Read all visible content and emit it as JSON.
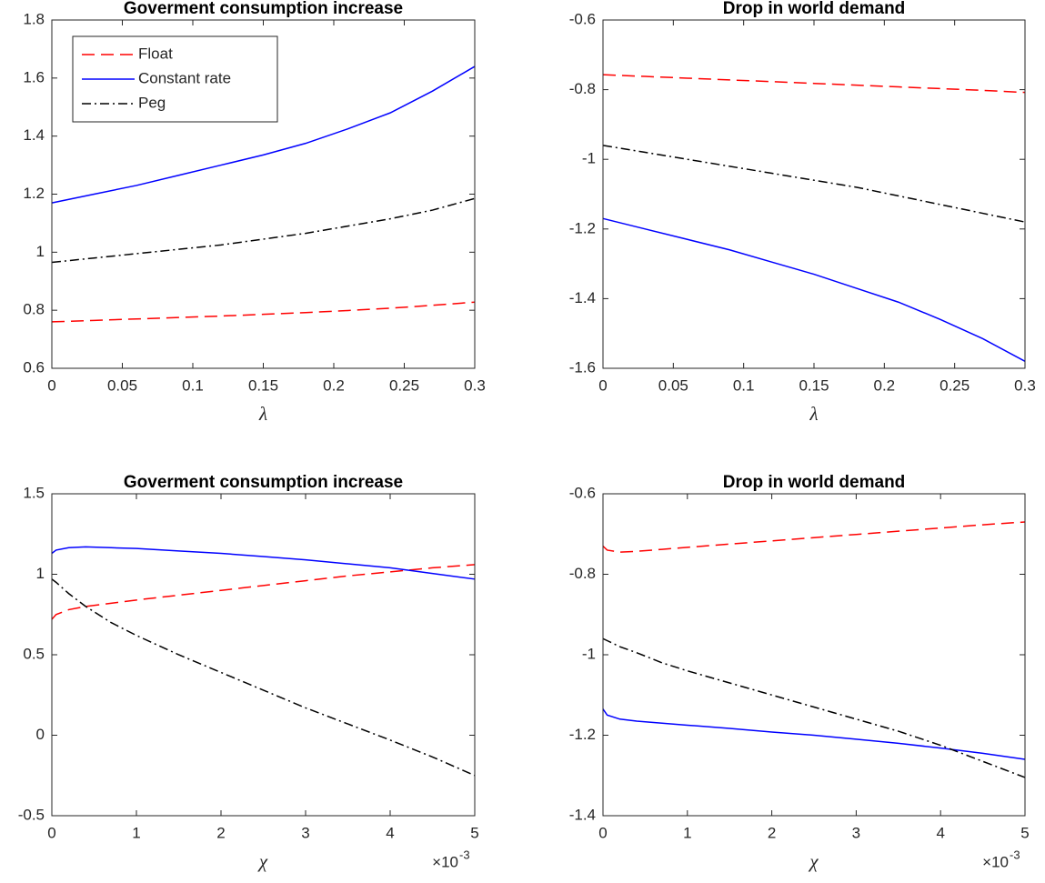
{
  "chart_data": [
    {
      "type": "line",
      "title": "Goverment consumption increase",
      "xlabel": "λ",
      "x": [
        0,
        0.03,
        0.06,
        0.09,
        0.12,
        0.15,
        0.18,
        0.21,
        0.24,
        0.27,
        0.3
      ],
      "series": [
        {
          "name": "Float",
          "color": "#ff0000",
          "dash": "dashed",
          "values": [
            0.76,
            0.765,
            0.77,
            0.775,
            0.78,
            0.786,
            0.792,
            0.799,
            0.807,
            0.817,
            0.828
          ]
        },
        {
          "name": "Constant rate",
          "color": "#0000ff",
          "dash": "solid",
          "values": [
            1.17,
            1.2,
            1.23,
            1.265,
            1.3,
            1.335,
            1.375,
            1.425,
            1.48,
            1.555,
            1.64
          ]
        },
        {
          "name": "Peg",
          "color": "#000000",
          "dash": "dashdot",
          "values": [
            0.965,
            0.98,
            0.995,
            1.01,
            1.025,
            1.045,
            1.065,
            1.09,
            1.115,
            1.145,
            1.185
          ]
        }
      ],
      "xlim": [
        0,
        0.3
      ],
      "xticks": [
        0,
        0.05,
        0.1,
        0.15,
        0.2,
        0.25,
        0.3
      ],
      "ylim": [
        0.6,
        1.8
      ],
      "yticks": [
        0.6,
        0.8,
        1,
        1.2,
        1.4,
        1.6,
        1.8
      ],
      "legend": "upper left"
    },
    {
      "type": "line",
      "title": "Drop in world demand",
      "xlabel": "λ",
      "x": [
        0,
        0.03,
        0.06,
        0.09,
        0.12,
        0.15,
        0.18,
        0.21,
        0.24,
        0.27,
        0.3
      ],
      "series": [
        {
          "color": "#ff0000",
          "dash": "dashed",
          "values": [
            -0.757,
            -0.762,
            -0.767,
            -0.772,
            -0.777,
            -0.782,
            -0.787,
            -0.792,
            -0.797,
            -0.802,
            -0.808
          ]
        },
        {
          "color": "#0000ff",
          "dash": "solid",
          "values": [
            -1.17,
            -1.2,
            -1.23,
            -1.26,
            -1.295,
            -1.33,
            -1.37,
            -1.41,
            -1.46,
            -1.515,
            -1.58
          ]
        },
        {
          "color": "#000000",
          "dash": "dashdot",
          "values": [
            -0.96,
            -0.98,
            -1.0,
            -1.02,
            -1.04,
            -1.06,
            -1.08,
            -1.105,
            -1.13,
            -1.155,
            -1.18
          ]
        }
      ],
      "xlim": [
        0,
        0.3
      ],
      "xticks": [
        0,
        0.05,
        0.1,
        0.15,
        0.2,
        0.25,
        0.3
      ],
      "ylim": [
        -1.6,
        -0.6
      ],
      "yticks": [
        -1.6,
        -1.4,
        -1.2,
        -1,
        -0.8,
        -0.6
      ]
    },
    {
      "type": "line",
      "title": "Goverment consumption increase",
      "xlabel": "χ",
      "x_scale_base": "×10",
      "x_scale_exponent": "-3",
      "x": [
        0,
        0.05,
        0.2,
        0.4,
        0.7,
        1,
        1.5,
        2,
        2.5,
        3,
        3.5,
        4,
        4.5,
        5
      ],
      "series": [
        {
          "color": "#ff0000",
          "dash": "dashed",
          "values": [
            0.72,
            0.75,
            0.78,
            0.8,
            0.82,
            0.84,
            0.87,
            0.9,
            0.93,
            0.96,
            0.99,
            1.015,
            1.04,
            1.06
          ]
        },
        {
          "color": "#0000ff",
          "dash": "solid",
          "values": [
            1.13,
            1.15,
            1.165,
            1.17,
            1.165,
            1.16,
            1.145,
            1.13,
            1.11,
            1.09,
            1.065,
            1.04,
            1.005,
            0.97
          ]
        },
        {
          "color": "#000000",
          "dash": "dashdot",
          "values": [
            0.97,
            0.95,
            0.88,
            0.8,
            0.7,
            0.62,
            0.5,
            0.39,
            0.28,
            0.17,
            0.07,
            -0.03,
            -0.135,
            -0.25
          ]
        }
      ],
      "xlim": [
        0,
        5
      ],
      "xticks": [
        0,
        1,
        2,
        3,
        4,
        5
      ],
      "ylim": [
        -0.5,
        1.5
      ],
      "yticks": [
        -0.5,
        0,
        0.5,
        1,
        1.5
      ]
    },
    {
      "type": "line",
      "title": "Drop in world demand",
      "xlabel": "χ",
      "x_scale_base": "×10",
      "x_scale_exponent": "-3",
      "x": [
        0,
        0.05,
        0.2,
        0.4,
        0.7,
        1,
        1.5,
        2,
        2.5,
        3,
        3.5,
        4,
        4.5,
        5
      ],
      "series": [
        {
          "color": "#ff0000",
          "dash": "dashed",
          "values": [
            -0.73,
            -0.74,
            -0.745,
            -0.743,
            -0.738,
            -0.733,
            -0.725,
            -0.717,
            -0.709,
            -0.701,
            -0.693,
            -0.685,
            -0.677,
            -0.67
          ]
        },
        {
          "color": "#0000ff",
          "dash": "solid",
          "values": [
            -1.135,
            -1.15,
            -1.16,
            -1.165,
            -1.17,
            -1.175,
            -1.183,
            -1.192,
            -1.2,
            -1.21,
            -1.22,
            -1.232,
            -1.245,
            -1.26
          ]
        },
        {
          "color": "#000000",
          "dash": "dashdot",
          "values": [
            -0.96,
            -0.965,
            -0.98,
            -0.995,
            -1.02,
            -1.04,
            -1.07,
            -1.1,
            -1.13,
            -1.16,
            -1.19,
            -1.225,
            -1.265,
            -1.305
          ]
        }
      ],
      "xlim": [
        0,
        5
      ],
      "xticks": [
        0,
        1,
        2,
        3,
        4,
        5
      ],
      "ylim": [
        -1.4,
        -0.6
      ],
      "yticks": [
        -1.4,
        -1.2,
        -1,
        -0.8,
        -0.6
      ]
    }
  ]
}
